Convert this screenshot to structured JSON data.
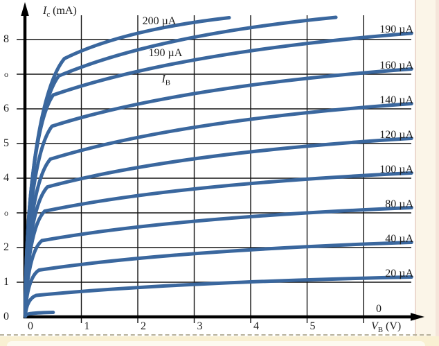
{
  "colors": {
    "curve": "#3a679e",
    "grid": "#141414",
    "axis": "#000000",
    "text": "#1c1c1c",
    "page_cream": "#f9f0d2",
    "divider": "#b6b09a",
    "strip_line": "#ecd9cf"
  },
  "chart_data": {
    "type": "line",
    "title": "",
    "xlabel": {
      "sym": "V",
      "sub": "B",
      "rest": " (V)"
    },
    "ylabel": {
      "sym": "I",
      "sub": "c",
      "rest": " (mA)"
    },
    "xlim": [
      0,
      7
    ],
    "ylim": [
      0,
      9
    ],
    "grid": true,
    "x_ticks": [
      {
        "label": "0",
        "v": 0
      },
      {
        "label": "1",
        "v": 1
      },
      {
        "label": "2",
        "v": 2
      },
      {
        "label": "3",
        "v": 3
      },
      {
        "label": "4",
        "v": 4
      },
      {
        "label": "5",
        "v": 5
      },
      {
        "label": "",
        "v": 6
      }
    ],
    "y_ticks": [
      {
        "label": "0",
        "v": 0
      },
      {
        "label": "1",
        "v": 1
      },
      {
        "label": "2",
        "v": 2
      },
      {
        "label": "o",
        "v": 3,
        "small": true
      },
      {
        "label": "4",
        "v": 4
      },
      {
        "label": "5",
        "v": 5
      },
      {
        "label": "6",
        "v": 6
      },
      {
        "label": "o",
        "v": 7,
        "small": true
      },
      {
        "label": "8",
        "v": 8
      }
    ],
    "family_label": {
      "sym": "I",
      "sub": "B",
      "xy": [
        2.5,
        6.82
      ]
    },
    "series": [
      {
        "ib_ua": 0,
        "label": "0",
        "label_at": "axis",
        "label_xy": [
          6.27,
          0.22
        ],
        "points": [
          [
            0,
            0
          ],
          [
            0.12,
            0.1
          ],
          [
            0.5,
            0.13
          ]
        ],
        "truncated": true
      },
      {
        "ib_ua": 20,
        "label": "20 µA",
        "label_at": "right",
        "points": [
          [
            0,
            0
          ],
          [
            0.2,
            0.62
          ],
          [
            6.85,
            1.15
          ]
        ]
      },
      {
        "ib_ua": 40,
        "label": "40 µA",
        "label_at": "right",
        "points": [
          [
            0,
            0
          ],
          [
            0.25,
            1.35
          ],
          [
            6.85,
            2.15
          ]
        ]
      },
      {
        "ib_ua": 80,
        "label": "80 µA",
        "label_at": "right",
        "points": [
          [
            0,
            0
          ],
          [
            0.3,
            2.2
          ],
          [
            6.85,
            3.15
          ]
        ]
      },
      {
        "ib_ua": 100,
        "label": "100 µA",
        "label_at": "right",
        "points": [
          [
            0,
            0
          ],
          [
            0.35,
            3.05
          ],
          [
            6.85,
            4.15
          ]
        ]
      },
      {
        "ib_ua": 120,
        "label": "120 µA",
        "label_at": "right",
        "points": [
          [
            0,
            0
          ],
          [
            0.4,
            3.75
          ],
          [
            6.85,
            5.15
          ]
        ]
      },
      {
        "ib_ua": 140,
        "label": "140 µA",
        "label_at": "right",
        "points": [
          [
            0,
            0
          ],
          [
            0.45,
            4.55
          ],
          [
            6.85,
            6.15
          ]
        ]
      },
      {
        "ib_ua": 160,
        "label": "160 µA",
        "label_at": "right",
        "points": [
          [
            0,
            0
          ],
          [
            0.48,
            5.5
          ],
          [
            6.85,
            7.15
          ]
        ]
      },
      {
        "ib_ua": 190,
        "label": "190 µA",
        "label_at": "right",
        "points": [
          [
            0,
            0
          ],
          [
            0.5,
            6.4
          ],
          [
            6.85,
            8.18
          ]
        ]
      },
      {
        "ib_ua": 190,
        "label": "190 µA",
        "label_at": "inline",
        "label_xy": [
          2.49,
          7.6
        ],
        "points": [
          [
            0,
            0
          ],
          [
            0.6,
            6.95
          ],
          [
            5.51,
            8.64
          ]
        ],
        "truncated": true
      },
      {
        "ib_ua": 200,
        "label": "200 µA",
        "label_at": "inline",
        "label_xy": [
          2.38,
          8.52
        ],
        "points": [
          [
            0,
            0
          ],
          [
            0.7,
            7.45
          ],
          [
            3.62,
            8.63
          ]
        ],
        "truncated": true
      }
    ]
  }
}
